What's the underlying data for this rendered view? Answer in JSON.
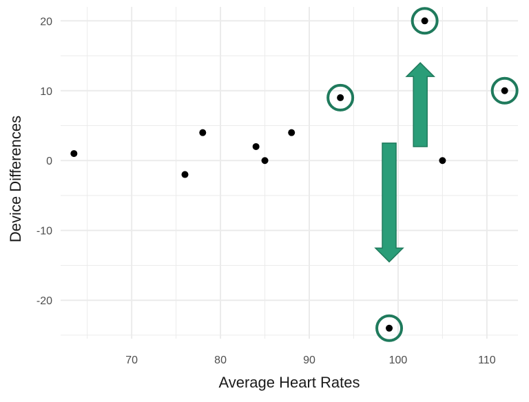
{
  "chart_data": {
    "type": "scatter",
    "xlabel": "Average Heart Rates",
    "ylabel": "Device Differences",
    "xlim": [
      62,
      113.5
    ],
    "ylim": [
      -25.5,
      22
    ],
    "x_ticks": [
      70,
      80,
      90,
      100,
      110
    ],
    "y_ticks": [
      -20,
      -10,
      0,
      10,
      20
    ],
    "x_minor_ticks": [
      65,
      75,
      85,
      95,
      105
    ],
    "y_minor_ticks": [
      -25,
      -15,
      -5,
      5,
      15
    ],
    "grid": true,
    "series": [
      {
        "points": [
          {
            "x": 63.5,
            "y": 1
          },
          {
            "x": 76,
            "y": -2
          },
          {
            "x": 78,
            "y": 4
          },
          {
            "x": 84,
            "y": 2
          },
          {
            "x": 85,
            "y": 0
          },
          {
            "x": 88,
            "y": 4
          },
          {
            "x": 93.5,
            "y": 9
          },
          {
            "x": 99,
            "y": -24
          },
          {
            "x": 103,
            "y": 20
          },
          {
            "x": 105,
            "y": 0
          },
          {
            "x": 112,
            "y": 10
          }
        ]
      }
    ],
    "annotations": {
      "highlight_color": "#1f7a5c",
      "arrow_color": "#2a9d78",
      "circled_points": [
        {
          "x": 93.5,
          "y": 9
        },
        {
          "x": 99,
          "y": -24
        },
        {
          "x": 103,
          "y": 20
        },
        {
          "x": 112,
          "y": 10
        }
      ],
      "arrows": [
        {
          "direction": "up",
          "x": 102.5,
          "y_from": 2,
          "y_to": 14
        },
        {
          "direction": "down",
          "x": 99,
          "y_from": 2.5,
          "y_to": -14.5
        }
      ]
    },
    "colors": {
      "point": "#000000",
      "grid": "#ebebeb",
      "tick_text": "#4d4d4d",
      "axis_title": "#1a1a1a"
    }
  }
}
